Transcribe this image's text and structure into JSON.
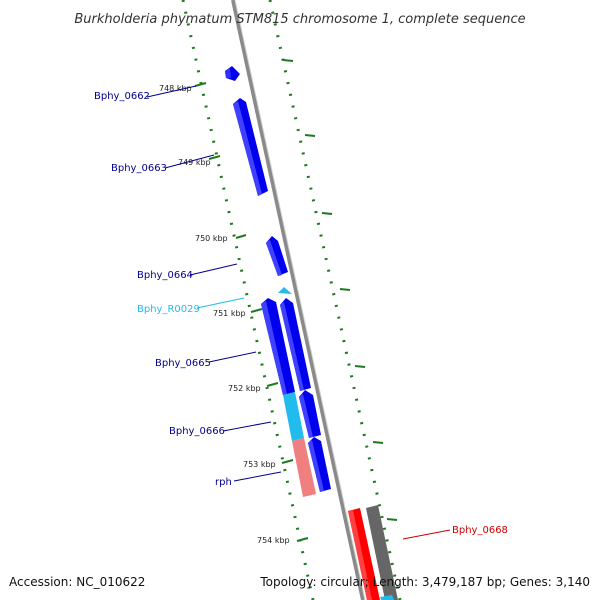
{
  "title": "Burkholderia phymatum STM815 chromosome 1, complete sequence",
  "footer": {
    "accession": "Accession: NC_010622",
    "summary": "Topology: circular; Length: 3,479,187 bp; Genes: 3,140"
  },
  "colors": {
    "backbone": "#8a8a8a",
    "tick": "#1e7a1e",
    "gene_blue": "#0000ee",
    "gene_cyan": "#22bbee",
    "gene_salmon": "#f08080",
    "gene_red": "#ff0000",
    "gene_gray": "#666666",
    "label_blue": "#00008b",
    "label_cyan": "#22bbee",
    "label_red": "#cc0000"
  },
  "ticks": [
    "748 kbp",
    "749 kbp",
    "750 kbp",
    "751 kbp",
    "752 kbp",
    "753 kbp",
    "754 kbp"
  ],
  "genes": [
    {
      "name": "Bphy_0662",
      "color": "gene_blue",
      "label_color": "label_blue"
    },
    {
      "name": "Bphy_0663",
      "color": "gene_blue",
      "label_color": "label_blue"
    },
    {
      "name": "Bphy_0664",
      "color": "gene_blue",
      "label_color": "label_blue"
    },
    {
      "name": "Bphy_R0029",
      "color": "gene_cyan",
      "label_color": "label_cyan"
    },
    {
      "name": "Bphy_0665",
      "color": "gene_blue",
      "label_color": "label_blue"
    },
    {
      "name": "Bphy_0666",
      "color": "gene_cyan",
      "label_color": "label_blue"
    },
    {
      "name": "rph",
      "color": "gene_salmon",
      "label_color": "label_blue"
    },
    {
      "name": "Bphy_0668",
      "color": "gene_red",
      "label_color": "label_red"
    }
  ]
}
